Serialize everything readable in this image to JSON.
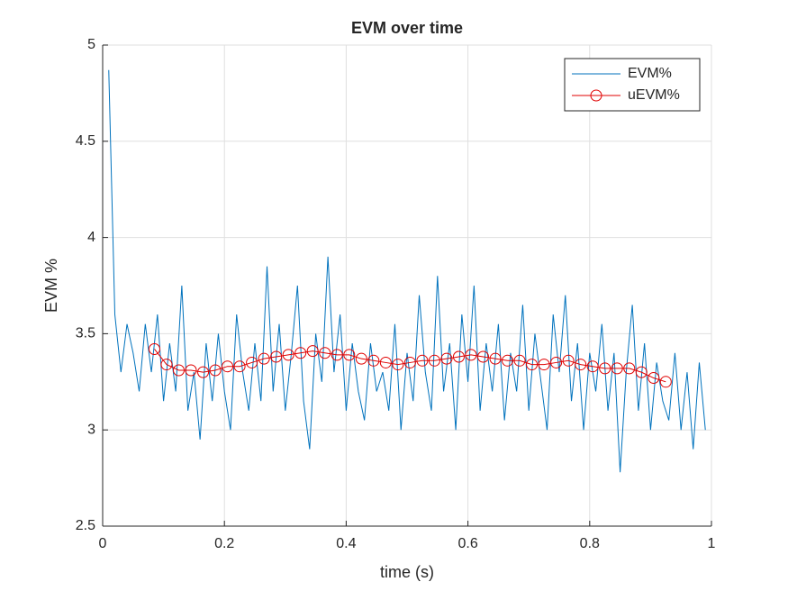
{
  "chart_data": {
    "type": "line",
    "title": "EVM over time",
    "xlabel": "time (s)",
    "ylabel": "EVM %",
    "xlim": [
      0,
      1
    ],
    "ylim": [
      2.5,
      5
    ],
    "xticks": [
      0,
      0.2,
      0.4,
      0.6,
      0.8,
      1
    ],
    "yticks": [
      2.5,
      3,
      3.5,
      4,
      4.5,
      5
    ],
    "grid": true,
    "legend": "northeast",
    "series": [
      {
        "name": "EVM%",
        "color": "#0072bd",
        "marker": "none",
        "x": [
          0.01,
          0.02,
          0.03,
          0.04,
          0.05,
          0.06,
          0.07,
          0.08,
          0.09,
          0.1,
          0.11,
          0.12,
          0.13,
          0.14,
          0.15,
          0.16,
          0.17,
          0.18,
          0.19,
          0.2,
          0.21,
          0.22,
          0.23,
          0.24,
          0.25,
          0.26,
          0.27,
          0.28,
          0.29,
          0.3,
          0.31,
          0.32,
          0.33,
          0.34,
          0.35,
          0.36,
          0.37,
          0.38,
          0.39,
          0.4,
          0.41,
          0.42,
          0.43,
          0.44,
          0.45,
          0.46,
          0.47,
          0.48,
          0.49,
          0.5,
          0.51,
          0.52,
          0.53,
          0.54,
          0.55,
          0.56,
          0.57,
          0.58,
          0.59,
          0.6,
          0.61,
          0.62,
          0.63,
          0.64,
          0.65,
          0.66,
          0.67,
          0.68,
          0.69,
          0.7,
          0.71,
          0.72,
          0.73,
          0.74,
          0.75,
          0.76,
          0.77,
          0.78,
          0.79,
          0.8,
          0.81,
          0.82,
          0.83,
          0.84,
          0.85,
          0.86,
          0.87,
          0.88,
          0.89,
          0.9,
          0.91,
          0.92,
          0.93,
          0.94,
          0.95,
          0.96,
          0.97,
          0.98,
          0.99
        ],
        "values": [
          4.87,
          3.6,
          3.3,
          3.55,
          3.4,
          3.2,
          3.55,
          3.3,
          3.6,
          3.15,
          3.45,
          3.2,
          3.75,
          3.1,
          3.3,
          2.95,
          3.45,
          3.15,
          3.5,
          3.2,
          3.0,
          3.6,
          3.3,
          3.1,
          3.45,
          3.15,
          3.85,
          3.2,
          3.55,
          3.1,
          3.4,
          3.75,
          3.15,
          2.9,
          3.5,
          3.25,
          3.9,
          3.3,
          3.6,
          3.1,
          3.45,
          3.2,
          3.05,
          3.45,
          3.2,
          3.3,
          3.1,
          3.55,
          3.0,
          3.4,
          3.15,
          3.7,
          3.3,
          3.1,
          3.8,
          3.2,
          3.45,
          3.0,
          3.6,
          3.25,
          3.75,
          3.1,
          3.45,
          3.2,
          3.55,
          3.05,
          3.4,
          3.2,
          3.65,
          3.1,
          3.5,
          3.25,
          3.0,
          3.6,
          3.3,
          3.7,
          3.15,
          3.45,
          3.0,
          3.4,
          3.2,
          3.55,
          3.1,
          3.4,
          2.78,
          3.3,
          3.65,
          3.1,
          3.45,
          3.0,
          3.35,
          3.15,
          3.05,
          3.4,
          3.0,
          3.3,
          2.9,
          3.35,
          3.0
        ]
      },
      {
        "name": "uEVM%",
        "color": "#e00000",
        "marker": "circle",
        "x": [
          0.085,
          0.105,
          0.125,
          0.145,
          0.165,
          0.185,
          0.205,
          0.225,
          0.245,
          0.265,
          0.285,
          0.305,
          0.325,
          0.345,
          0.365,
          0.385,
          0.405,
          0.425,
          0.445,
          0.465,
          0.485,
          0.505,
          0.525,
          0.545,
          0.565,
          0.585,
          0.605,
          0.625,
          0.645,
          0.665,
          0.685,
          0.705,
          0.725,
          0.745,
          0.765,
          0.785,
          0.805,
          0.825,
          0.845,
          0.865,
          0.885,
          0.905,
          0.925
        ],
        "values": [
          3.42,
          3.34,
          3.31,
          3.31,
          3.3,
          3.31,
          3.33,
          3.33,
          3.35,
          3.37,
          3.38,
          3.39,
          3.4,
          3.41,
          3.4,
          3.39,
          3.39,
          3.37,
          3.36,
          3.35,
          3.34,
          3.35,
          3.36,
          3.36,
          3.37,
          3.38,
          3.39,
          3.38,
          3.37,
          3.36,
          3.36,
          3.34,
          3.34,
          3.35,
          3.36,
          3.34,
          3.33,
          3.32,
          3.32,
          3.32,
          3.3,
          3.27,
          3.25
        ]
      }
    ]
  }
}
